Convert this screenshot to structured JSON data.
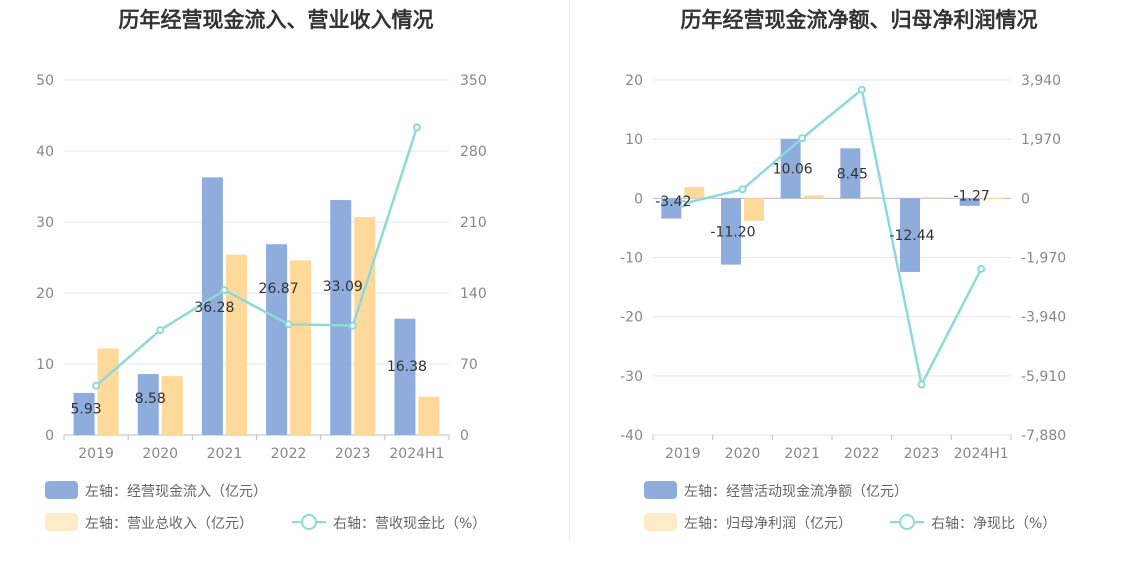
{
  "colors": {
    "bar1": "#8eacdc",
    "bar2": "#fed99a",
    "line": "#8ed9d9",
    "legend_bar2": "#feebc8"
  },
  "chart_data": [
    {
      "type": "bar",
      "title": "历年经营现金流入、营业收入情况",
      "categories": [
        "2019",
        "2020",
        "2021",
        "2022",
        "2023",
        "2024H1"
      ],
      "left_axis": {
        "min": 0,
        "max": 50,
        "step": 10,
        "ticks": [
          "0",
          "10",
          "20",
          "30",
          "40",
          "50"
        ]
      },
      "right_axis": {
        "min": 0,
        "max": 350,
        "ticks": [
          "0",
          "70",
          "140",
          "210",
          "280",
          "350"
        ]
      },
      "series": [
        {
          "name": "左轴：经营现金流入（亿元）",
          "type": "bar",
          "axis": "left",
          "values": [
            5.93,
            8.58,
            36.28,
            26.87,
            33.09,
            16.38
          ],
          "labels": [
            "5.93",
            "8.58",
            "36.28",
            "26.87",
            "33.09",
            "16.38"
          ]
        },
        {
          "name": "左轴：营业总收入（亿元）",
          "type": "bar",
          "axis": "left",
          "values": [
            12.2,
            8.3,
            25.4,
            24.6,
            30.7,
            5.4
          ]
        },
        {
          "name": "右轴：营收现金比（%）",
          "type": "line",
          "axis": "right",
          "values": [
            48.6,
            103.4,
            142.8,
            109.2,
            107.8,
            303.3
          ]
        }
      ]
    },
    {
      "type": "bar",
      "title": "历年经营现金流净额、归母净利润情况",
      "categories": [
        "2019",
        "2020",
        "2021",
        "2022",
        "2023",
        "2024H1"
      ],
      "left_axis": {
        "min": -40,
        "max": 20,
        "step": 10,
        "ticks": [
          "-40",
          "-30",
          "-20",
          "-10",
          "0",
          "10",
          "20"
        ]
      },
      "right_axis": {
        "min": -7880,
        "max": 3940,
        "ticks": [
          "-7,880",
          "-5,910",
          "-3,940",
          "-1,970",
          "0",
          "1,970",
          "3,940"
        ]
      },
      "series": [
        {
          "name": "左轴：经营活动现金流净额（亿元）",
          "type": "bar",
          "axis": "left",
          "values": [
            -3.42,
            -11.2,
            10.06,
            8.45,
            -12.44,
            -1.27
          ],
          "labels": [
            "-3.42",
            "-11.20",
            "10.06",
            "8.45",
            "-12.44",
            "-1.27"
          ]
        },
        {
          "name": "左轴：归母净利润（亿元）",
          "type": "bar",
          "axis": "left",
          "values": [
            1.9,
            -3.8,
            0.5,
            0.25,
            0.2,
            0.05
          ]
        },
        {
          "name": "右轴：净现比（%）",
          "type": "line",
          "axis": "right",
          "values": [
            -180,
            300,
            2000,
            3620,
            -6200,
            -2350
          ]
        }
      ]
    }
  ]
}
